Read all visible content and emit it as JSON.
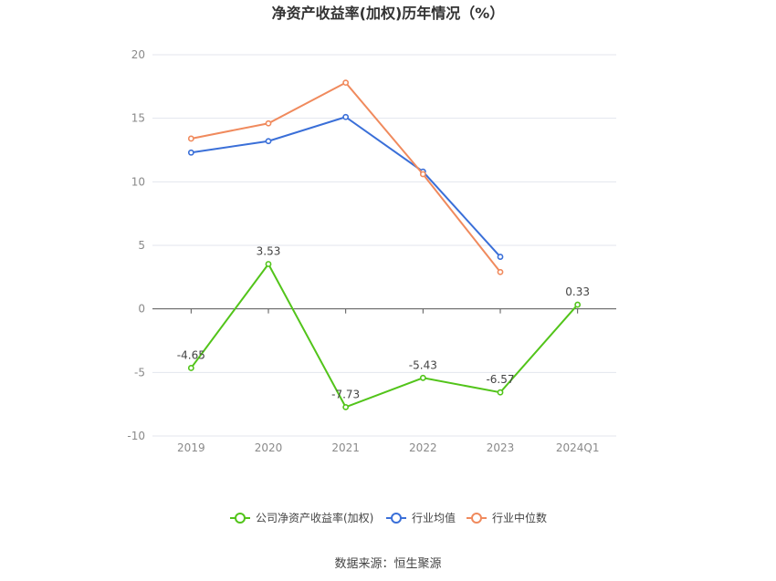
{
  "chart_data": {
    "type": "line",
    "title": "净资产收益率(加权)历年情况（%）",
    "categories": [
      "2019",
      "2020",
      "2021",
      "2022",
      "2023",
      "2024Q1"
    ],
    "ylim": [
      -10,
      20
    ],
    "yticks": [
      "20",
      "15",
      "10",
      "5",
      "0",
      "-5",
      "-10"
    ],
    "ytick_values": [
      20,
      15,
      10,
      5,
      0,
      -5,
      -10
    ],
    "grid": true,
    "legend_position": "bottom",
    "series": [
      {
        "name": "公司净资产收益率(加权)",
        "color": "#52c41a",
        "values": [
          -4.65,
          3.53,
          -7.73,
          -5.43,
          -6.57,
          0.33
        ],
        "labels": [
          "-4.65",
          "3.53",
          "-7.73",
          "-5.43",
          "-6.57",
          "0.33"
        ]
      },
      {
        "name": "行业均值",
        "color": "#3a6fd8",
        "values": [
          12.3,
          13.2,
          15.1,
          10.8,
          4.1,
          null
        ]
      },
      {
        "name": "行业中位数",
        "color": "#f08a5d",
        "values": [
          13.4,
          14.6,
          17.8,
          10.6,
          2.9,
          null
        ]
      }
    ]
  },
  "source": "数据来源：恒生聚源"
}
